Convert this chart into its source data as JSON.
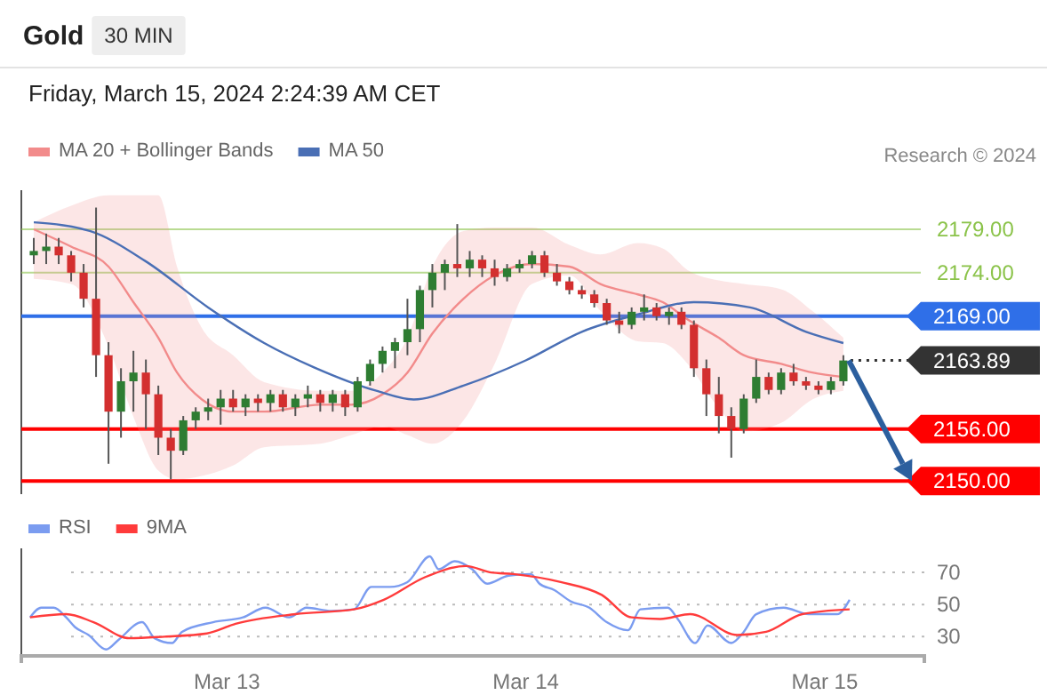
{
  "chart_data": [
    {
      "type": "candlestick",
      "title": "Gold",
      "subtitle": "Friday, March 15, 2024 2:24:39 AM CET",
      "annotations": [
        "30 MIN",
        "Research © 2024"
      ],
      "x": [
        "2024-03-12T08:30",
        "2024-03-12T09:30",
        "2024-03-12T10:30",
        "2024-03-12T11:30",
        "2024-03-12T12:30",
        "2024-03-12T13:30",
        "2024-03-12T14:30",
        "2024-03-12T15:30",
        "2024-03-12T16:30",
        "2024-03-12T17:30",
        "2024-03-12T18:30",
        "2024-03-12T19:30",
        "2024-03-12T20:30",
        "2024-03-12T21:30",
        "2024-03-12T22:30",
        "2024-03-12T23:30",
        "2024-03-13T00:30",
        "2024-03-13T01:30",
        "2024-03-13T02:30",
        "2024-03-13T03:30",
        "2024-03-13T04:30",
        "2024-03-13T05:30",
        "2024-03-13T06:30",
        "2024-03-13T07:30",
        "2024-03-13T08:30",
        "2024-03-13T09:30",
        "2024-03-13T10:30",
        "2024-03-13T11:30",
        "2024-03-13T12:30",
        "2024-03-13T13:30",
        "2024-03-13T14:30",
        "2024-03-13T15:30",
        "2024-03-13T16:30",
        "2024-03-13T17:30",
        "2024-03-13T18:30",
        "2024-03-13T19:30",
        "2024-03-13T20:30",
        "2024-03-13T21:30",
        "2024-03-13T22:30",
        "2024-03-13T23:30",
        "2024-03-14T00:30",
        "2024-03-14T01:30",
        "2024-03-14T02:30",
        "2024-03-14T03:30",
        "2024-03-14T04:30",
        "2024-03-14T05:30",
        "2024-03-14T06:30",
        "2024-03-14T07:30",
        "2024-03-14T08:30",
        "2024-03-14T09:30",
        "2024-03-14T10:30",
        "2024-03-14T11:30",
        "2024-03-14T12:30",
        "2024-03-14T13:30",
        "2024-03-14T14:30",
        "2024-03-14T15:30",
        "2024-03-14T16:30",
        "2024-03-14T17:30",
        "2024-03-14T18:30",
        "2024-03-14T19:30",
        "2024-03-14T20:30",
        "2024-03-14T21:30",
        "2024-03-14T22:30",
        "2024-03-14T23:30",
        "2024-03-15T00:30",
        "2024-03-15T01:30"
      ],
      "ohlc": [
        [
          2176,
          2178,
          2175,
          2176.5
        ],
        [
          2176.5,
          2178.5,
          2175,
          2177
        ],
        [
          2177,
          2178,
          2175,
          2176
        ],
        [
          2176,
          2176.5,
          2173,
          2174
        ],
        [
          2174,
          2175,
          2170,
          2171
        ],
        [
          2171,
          2181.5,
          2162,
          2164.5
        ],
        [
          2164.5,
          2166,
          2152,
          2158
        ],
        [
          2158,
          2163,
          2155,
          2161.5
        ],
        [
          2161.5,
          2165,
          2158,
          2162.5
        ],
        [
          2162.5,
          2164,
          2156,
          2160
        ],
        [
          2160,
          2161,
          2153,
          2155
        ],
        [
          2155,
          2156,
          2150.2,
          2153.5
        ],
        [
          2153.5,
          2157.5,
          2153,
          2157
        ],
        [
          2157,
          2158.5,
          2156,
          2158
        ],
        [
          2158,
          2159.5,
          2157,
          2158.5
        ],
        [
          2158.5,
          2160.5,
          2156.5,
          2159.5
        ],
        [
          2159.5,
          2160.5,
          2158,
          2158.5
        ],
        [
          2158.5,
          2160,
          2157.5,
          2159.5
        ],
        [
          2159.5,
          2160,
          2158,
          2159
        ],
        [
          2159,
          2160.5,
          2158,
          2160
        ],
        [
          2160,
          2160.5,
          2158,
          2158.5
        ],
        [
          2158.5,
          2160,
          2157.5,
          2159.5
        ],
        [
          2159.5,
          2161,
          2158.5,
          2160
        ],
        [
          2160,
          2160.5,
          2158,
          2159
        ],
        [
          2159,
          2160.5,
          2158,
          2160
        ],
        [
          2160,
          2160.5,
          2157.5,
          2158.5
        ],
        [
          2158.5,
          2162,
          2158,
          2161.5
        ],
        [
          2161.5,
          2164,
          2161,
          2163.5
        ],
        [
          2163.5,
          2165.5,
          2162.5,
          2165
        ],
        [
          2165,
          2166.5,
          2163,
          2166
        ],
        [
          2166,
          2171,
          2164.5,
          2167.5
        ],
        [
          2167.5,
          2172.5,
          2166,
          2172
        ],
        [
          2172,
          2175,
          2170,
          2174
        ],
        [
          2174,
          2175.5,
          2172,
          2175
        ],
        [
          2175,
          2179.6,
          2173.5,
          2174.5
        ],
        [
          2174.5,
          2176.5,
          2173.5,
          2175.5
        ],
        [
          2175.5,
          2176,
          2173.5,
          2174.5
        ],
        [
          2174.5,
          2175.5,
          2172.5,
          2173.5
        ],
        [
          2173.5,
          2175,
          2173,
          2174.5
        ],
        [
          2174.5,
          2175.5,
          2174,
          2175
        ],
        [
          2175,
          2176.5,
          2174.5,
          2176
        ],
        [
          2176,
          2176.5,
          2173.5,
          2174
        ],
        [
          2174,
          2175,
          2172.5,
          2173
        ],
        [
          2173,
          2173.5,
          2171.5,
          2172
        ],
        [
          2172,
          2172.5,
          2171,
          2171.5
        ],
        [
          2171.5,
          2172,
          2170,
          2170.5
        ],
        [
          2170.5,
          2171,
          2168,
          2168.5
        ],
        [
          2168.5,
          2169.5,
          2167,
          2168
        ],
        [
          2168,
          2170,
          2167.5,
          2169.5
        ],
        [
          2169.5,
          2171.5,
          2168.5,
          2170
        ],
        [
          2170,
          2170.5,
          2168.5,
          2169
        ],
        [
          2169,
          2170,
          2168,
          2169.5
        ],
        [
          2169.5,
          2170,
          2167.5,
          2168
        ],
        [
          2168,
          2168.5,
          2162,
          2163
        ],
        [
          2163,
          2164,
          2157.5,
          2160
        ],
        [
          2160,
          2162,
          2155.5,
          2157.5
        ],
        [
          2157.5,
          2158.5,
          2152.7,
          2156
        ],
        [
          2156,
          2160,
          2155.5,
          2159.5
        ],
        [
          2159.5,
          2164,
          2159,
          2162
        ],
        [
          2162,
          2162.5,
          2160,
          2160.5
        ],
        [
          2160.5,
          2163,
          2160,
          2162.5
        ],
        [
          2162.5,
          2163.5,
          2161,
          2161.5
        ],
        [
          2161.5,
          2162,
          2160.5,
          2161
        ],
        [
          2161,
          2161.5,
          2160,
          2160.5
        ],
        [
          2160.5,
          2162,
          2160,
          2161.5
        ],
        [
          2161.5,
          2164.5,
          2161,
          2163.89
        ]
      ],
      "series": [
        {
          "type": "line",
          "name": "MA 20 + Bollinger Bands",
          "color": "#f28b8b",
          "x": [
            "2024-03-12T08:30",
            "2024-03-12T11:30",
            "2024-03-12T14:30",
            "2024-03-12T16:30",
            "2024-03-12T18:30",
            "2024-03-12T20:00",
            "2024-03-12T22:00",
            "2024-03-13T00:30",
            "2024-03-13T03:00",
            "2024-03-13T07:30",
            "2024-03-13T10:00",
            "2024-03-13T12:30",
            "2024-03-13T14:30",
            "2024-03-13T16:30",
            "2024-03-13T19:00",
            "2024-03-13T21:30",
            "2024-03-14T00:30",
            "2024-03-14T03:30",
            "2024-03-14T06:00",
            "2024-03-14T09:00",
            "2024-03-14T11:00",
            "2024-03-14T13:00",
            "2024-03-14T15:30",
            "2024-03-14T17:30",
            "2024-03-14T20:30",
            "2024-03-14T23:00",
            "2024-03-15T01:30"
          ],
          "values": [
            2179,
            2177,
            2174.7,
            2170.6,
            2166.5,
            2162.5,
            2159.4,
            2158,
            2158,
            2158.8,
            2158.8,
            2160,
            2162.5,
            2167,
            2171,
            2173.7,
            2175,
            2174.7,
            2172.7,
            2171.5,
            2170.6,
            2168.6,
            2166.5,
            2164.5,
            2163.5,
            2162.5,
            2162
          ],
          "upper": [
            2179.8,
            2181.7,
            2182.9,
            2182.9,
            2182.9,
            2174.7,
            2167.6,
            2164.5,
            2161.4,
            2160.4,
            2160.4,
            2162.5,
            2166.5,
            2174.7,
            2178.8,
            2179.2,
            2179.2,
            2177.2,
            2176.1,
            2177.4,
            2176.8,
            2174.3,
            2173.1,
            2172.7,
            2172.1,
            2169.6,
            2166.5
          ],
          "lower": [
            2173.3,
            2172.7,
            2165.5,
            2157.4,
            2151.2,
            2150.2,
            2150.6,
            2151.8,
            2153.9,
            2154.3,
            2155.3,
            2156.3,
            2155.3,
            2154.3,
            2157,
            2163.5,
            2172.7,
            2173.7,
            2169.6,
            2166.1,
            2165.9,
            2163.5,
            2158.4,
            2155.7,
            2156.7,
            2159.4,
            2160.4
          ]
        },
        {
          "type": "line",
          "name": "MA 50",
          "color": "#4a6fb5",
          "x": [
            "2024-03-12T08:30",
            "2024-03-12T13:00",
            "2024-03-12T17:30",
            "2024-03-12T22:30",
            "2024-03-13T03:00",
            "2024-03-13T07:00",
            "2024-03-13T12:00",
            "2024-03-13T15:00",
            "2024-03-13T19:00",
            "2024-03-14T00:00",
            "2024-03-14T04:30",
            "2024-03-14T09:00",
            "2024-03-14T13:30",
            "2024-03-14T18:00",
            "2024-03-14T22:30",
            "2024-03-15T01:30"
          ],
          "values": [
            2179.8,
            2178.8,
            2175.3,
            2170,
            2165.9,
            2163.1,
            2160.4,
            2159.4,
            2161,
            2163.9,
            2167.2,
            2169.2,
            2170.6,
            2170,
            2167.2,
            2165.9
          ]
        }
      ],
      "ref_lines": [
        {
          "axis": "y",
          "value": 2179,
          "label": "2179.00",
          "color": "#8bc34a"
        },
        {
          "axis": "y",
          "value": 2174,
          "label": "2174.00",
          "color": "#8bc34a"
        },
        {
          "axis": "y",
          "value": 2169,
          "label": "2169.00",
          "color": "#2f6fe8"
        },
        {
          "axis": "y",
          "value": 2163.89,
          "label": "2163.89",
          "color": "#333333",
          "line_style": "dotted"
        },
        {
          "axis": "y",
          "value": 2156,
          "label": "2156.00",
          "color": "#ff0000"
        },
        {
          "axis": "y",
          "value": 2150,
          "label": "2150.00",
          "color": "#ff0000"
        }
      ],
      "xlim": [
        "2024-03-12T07:30",
        "2024-03-15T08:00"
      ],
      "ylim": [
        2148.5,
        2183.5
      ],
      "tick_labels": false,
      "legend": "top left"
    },
    {
      "type": "line",
      "xlim": [
        "2024-03-12T07:30",
        "2024-03-15T08:00"
      ],
      "ylim": [
        18,
        85
      ],
      "yticks": [
        30,
        50,
        70
      ],
      "xticks": [
        {
          "value": "2024-03-13",
          "label": "Mar 13"
        },
        {
          "value": "2024-03-14",
          "label": "Mar 14"
        },
        {
          "value": "2024-03-15",
          "label": "Mar 15"
        }
      ],
      "grid": "y",
      "legend": "top left",
      "series": [
        {
          "name": "RSI",
          "color": "#7b9cf0",
          "x": [
            "2024-03-12T08:12",
            "2024-03-12T09:06",
            "2024-03-12T10:06",
            "2024-03-12T11:06",
            "2024-03-12T11:48",
            "2024-03-12T12:54",
            "2024-03-12T14:18",
            "2024-03-12T15:18",
            "2024-03-12T17:12",
            "2024-03-12T18:12",
            "2024-03-12T19:36",
            "2024-03-12T20:24",
            "2024-03-12T22:54",
            "2024-03-13T01:18",
            "2024-03-13T03:06",
            "2024-03-13T05:00",
            "2024-03-13T06:24",
            "2024-03-13T08:24",
            "2024-03-13T10:12",
            "2024-03-13T11:36",
            "2024-03-13T13:06",
            "2024-03-13T14:30",
            "2024-03-13T16:18",
            "2024-03-13T17:00",
            "2024-03-13T18:18",
            "2024-03-13T19:42",
            "2024-03-13T20:54",
            "2024-03-13T22:36",
            "2024-03-14T00:24",
            "2024-03-14T01:06",
            "2024-03-14T02:18",
            "2024-03-14T03:36",
            "2024-03-14T05:06",
            "2024-03-14T06:30",
            "2024-03-14T08:12",
            "2024-03-14T09:12",
            "2024-03-14T11:24",
            "2024-03-14T12:12",
            "2024-03-14T13:36",
            "2024-03-14T14:36",
            "2024-03-14T16:30",
            "2024-03-14T17:30",
            "2024-03-14T18:30",
            "2024-03-14T20:42",
            "2024-03-14T22:42",
            "2024-03-15T01:00",
            "2024-03-15T02:00"
          ],
          "values": [
            42,
            48,
            48,
            42,
            36,
            31,
            22,
            28,
            39,
            29,
            26,
            33,
            39,
            42,
            48,
            42,
            48,
            46,
            47,
            61,
            61,
            64,
            80,
            72,
            77,
            72,
            63,
            68,
            69,
            63,
            59,
            52,
            48,
            39,
            34,
            47,
            48,
            41,
            26,
            37,
            26,
            33,
            44,
            48,
            44,
            44,
            53
          ]
        },
        {
          "name": "9MA",
          "color": "#ff3b3b",
          "x": [
            "2024-03-12T08:12",
            "2024-03-12T11:06",
            "2024-03-12T13:18",
            "2024-03-12T16:12",
            "2024-03-12T19:00",
            "2024-03-12T22:24",
            "2024-03-13T00:42",
            "2024-03-13T05:30",
            "2024-03-13T10:12",
            "2024-03-13T12:36",
            "2024-03-13T15:54",
            "2024-03-13T19:12",
            "2024-03-13T21:12",
            "2024-03-13T23:00",
            "2024-03-14T02:48",
            "2024-03-14T06:06",
            "2024-03-14T08:30",
            "2024-03-14T10:48",
            "2024-03-14T13:12",
            "2024-03-14T17:00",
            "2024-03-14T19:18",
            "2024-03-14T22:12",
            "2024-03-15T02:00"
          ],
          "values": [
            42,
            44,
            39,
            29,
            30,
            32,
            38,
            44,
            47,
            53,
            67,
            74,
            70,
            69,
            64,
            56,
            42,
            41,
            44,
            31,
            33,
            44,
            47
          ]
        }
      ]
    }
  ]
}
